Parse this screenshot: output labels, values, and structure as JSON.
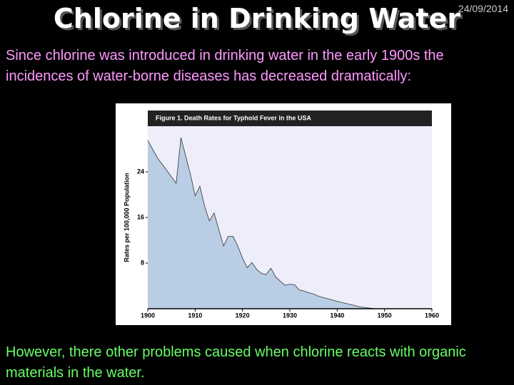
{
  "slide": {
    "title": "Chlorine in Drinking Water",
    "date": "24/09/2014",
    "intro": "Since chlorine was introduced in drinking water in the early 1900s the incidences of water-borne diseases has decreased dramatically:",
    "outro": "However, there other problems caused when chlorine reacts with organic materials in the water."
  },
  "chart_data": {
    "type": "area",
    "title": "Figure 1.  Death Rates for Typhoid Fever in the USA",
    "y_label": "Rates per 100,000 Population",
    "x": [
      1900,
      1902,
      1906,
      1907,
      1908,
      1909,
      1910,
      1911,
      1912,
      1913,
      1914,
      1915,
      1916,
      1917,
      1918,
      1919,
      1920,
      1921,
      1922,
      1923,
      1924,
      1925,
      1926,
      1927,
      1928,
      1929,
      1930,
      1931,
      1932,
      1933,
      1934,
      1935,
      1936,
      1940,
      1945,
      1948
    ],
    "values": [
      29.5,
      26.5,
      22,
      30,
      26.8,
      23.6,
      19.8,
      21.5,
      18,
      15.4,
      16.8,
      13.9,
      11,
      12.7,
      12.7,
      11,
      8.9,
      7.2,
      8.1,
      6.9,
      6.2,
      6,
      7.1,
      5.6,
      4.8,
      4.1,
      4.3,
      4.2,
      3.3,
      3.1,
      2.8,
      2.6,
      2.2,
      1.3,
      0.3,
      0
    ],
    "color": "#b9cde4",
    "line_color": "#333333",
    "background": "#eeeefa",
    "xlim": [
      1900,
      1960
    ],
    "xticks": [
      1900,
      1910,
      1920,
      1930,
      1940,
      1950,
      1960
    ],
    "ylim": [
      0,
      32
    ],
    "yticks": [
      8,
      16,
      24
    ]
  }
}
